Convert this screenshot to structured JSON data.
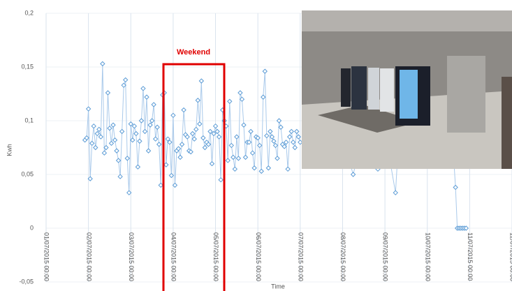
{
  "chart_data": {
    "type": "line",
    "y_label": "Kwh",
    "x_label": "Time",
    "annotation": "Weekend",
    "grid": true,
    "ylim": [
      -0.05,
      0.2
    ],
    "yticks": [
      {
        "value": -0.05,
        "label": "-0,05"
      },
      0,
      {
        "value": 0.05,
        "label": "0,05"
      },
      {
        "value": 0.1,
        "label": "0,1"
      },
      {
        "value": 0.15,
        "label": "0,15"
      },
      {
        "value": 0.2,
        "label": "0,2"
      }
    ],
    "xlim": [
      "2015-07-01T00:00",
      "2015-07-12T00:00"
    ],
    "xticks": [
      {
        "value": "2015-07-01T00:00",
        "label": "01/07/2015 00:00"
      },
      {
        "value": "2015-07-02T00:00",
        "label": "02/07/2015 00:00"
      },
      {
        "value": "2015-07-03T00:00",
        "label": "03/07/2015 00:00"
      },
      {
        "value": "2015-07-04T00:00",
        "label": "04/07/2015 00:00"
      },
      {
        "value": "2015-07-05T00:00",
        "label": "05/07/2015 00:00"
      },
      {
        "value": "2015-07-06T00:00",
        "label": "06/07/2015 00:00"
      },
      {
        "value": "2015-07-07T00:00",
        "label": "07/07/2015 00:00"
      },
      {
        "value": "2015-07-08T00:00",
        "label": "08/07/2015 00:00"
      },
      {
        "value": "2015-07-09T00:00",
        "label": "09/07/2015 00:00"
      },
      {
        "value": "2015-07-10T00:00",
        "label": "10/07/2015 00:00"
      },
      {
        "value": "2015-07-11T00:00",
        "label": "11/07/2015 00:00"
      },
      {
        "value": "2015-07-12T00:00",
        "label": "12/07/2015 00:00"
      }
    ],
    "x": [
      "2015-07-01T22:00",
      "2015-07-01T23:00",
      "2015-07-02T00:00",
      "2015-07-02T01:00",
      "2015-07-02T02:00",
      "2015-07-02T03:00",
      "2015-07-02T04:00",
      "2015-07-02T05:00",
      "2015-07-02T06:00",
      "2015-07-02T07:00",
      "2015-07-02T08:00",
      "2015-07-02T09:00",
      "2015-07-02T10:00",
      "2015-07-02T11:00",
      "2015-07-02T12:00",
      "2015-07-02T13:00",
      "2015-07-02T14:00",
      "2015-07-02T15:00",
      "2015-07-02T16:00",
      "2015-07-02T17:00",
      "2015-07-02T18:00",
      "2015-07-02T19:00",
      "2015-07-02T20:00",
      "2015-07-02T21:00",
      "2015-07-02T22:00",
      "2015-07-02T23:00",
      "2015-07-03T00:00",
      "2015-07-03T01:00",
      "2015-07-03T02:00",
      "2015-07-03T03:00",
      "2015-07-03T04:00",
      "2015-07-03T05:00",
      "2015-07-03T06:00",
      "2015-07-03T07:00",
      "2015-07-03T08:00",
      "2015-07-03T09:00",
      "2015-07-03T10:00",
      "2015-07-03T11:00",
      "2015-07-03T12:00",
      "2015-07-03T13:00",
      "2015-07-03T14:00",
      "2015-07-03T15:00",
      "2015-07-03T16:00",
      "2015-07-03T17:00",
      "2015-07-03T18:00",
      "2015-07-03T19:00",
      "2015-07-03T20:00",
      "2015-07-03T21:00",
      "2015-07-03T22:00",
      "2015-07-03T23:00",
      "2015-07-04T00:00",
      "2015-07-04T01:00",
      "2015-07-04T02:00",
      "2015-07-04T03:00",
      "2015-07-04T04:00",
      "2015-07-04T05:00",
      "2015-07-04T06:00",
      "2015-07-04T07:00",
      "2015-07-04T08:00",
      "2015-07-04T09:00",
      "2015-07-04T10:00",
      "2015-07-04T11:00",
      "2015-07-04T12:00",
      "2015-07-04T13:00",
      "2015-07-04T14:00",
      "2015-07-04T15:00",
      "2015-07-04T16:00",
      "2015-07-04T17:00",
      "2015-07-04T18:00",
      "2015-07-04T19:00",
      "2015-07-04T20:00",
      "2015-07-04T21:00",
      "2015-07-04T22:00",
      "2015-07-04T23:00",
      "2015-07-05T00:00",
      "2015-07-05T01:00",
      "2015-07-05T02:00",
      "2015-07-05T03:00",
      "2015-07-05T04:00",
      "2015-07-05T05:00",
      "2015-07-05T06:00",
      "2015-07-05T07:00",
      "2015-07-05T08:00",
      "2015-07-05T09:00",
      "2015-07-05T10:00",
      "2015-07-05T11:00",
      "2015-07-05T12:00",
      "2015-07-05T13:00",
      "2015-07-05T14:00",
      "2015-07-05T15:00",
      "2015-07-05T16:00",
      "2015-07-05T17:00",
      "2015-07-05T18:00",
      "2015-07-05T19:00",
      "2015-07-05T20:00",
      "2015-07-05T21:00",
      "2015-07-05T22:00",
      "2015-07-05T23:00",
      "2015-07-06T00:00",
      "2015-07-06T01:00",
      "2015-07-06T02:00",
      "2015-07-06T03:00",
      "2015-07-06T04:00",
      "2015-07-06T05:00",
      "2015-07-06T06:00",
      "2015-07-06T07:00",
      "2015-07-06T08:00",
      "2015-07-06T09:00",
      "2015-07-06T10:00",
      "2015-07-06T11:00",
      "2015-07-06T12:00",
      "2015-07-06T13:00",
      "2015-07-06T14:00",
      "2015-07-06T15:00",
      "2015-07-06T16:00",
      "2015-07-06T17:00",
      "2015-07-06T18:00",
      "2015-07-06T19:00",
      "2015-07-06T20:00",
      "2015-07-06T21:00",
      "2015-07-06T22:00",
      "2015-07-06T23:00",
      "2015-07-07T00:00",
      "2015-07-08T00:00",
      "2015-07-08T06:00",
      "2015-07-08T12:00",
      "2015-07-08T20:00",
      "2015-07-09T00:00",
      "2015-07-09T06:00",
      "2015-07-09T08:00",
      "2015-07-10T14:00",
      "2015-07-10T16:00",
      "2015-07-10T17:00",
      "2015-07-10T18:00",
      "2015-07-10T19:00",
      "2015-07-10T20:00",
      "2015-07-10T21:00",
      "2015-07-10T22:00"
    ],
    "series": [
      {
        "name": "Kwh",
        "color": "#5b9bd5",
        "values": [
          0.082,
          0.084,
          0.111,
          0.046,
          0.079,
          0.095,
          0.075,
          0.088,
          0.092,
          0.085,
          0.153,
          0.07,
          0.075,
          0.126,
          0.093,
          0.079,
          0.096,
          0.082,
          0.072,
          0.063,
          0.048,
          0.09,
          0.133,
          0.138,
          0.065,
          0.033,
          0.097,
          0.082,
          0.095,
          0.088,
          0.057,
          0.081,
          0.1,
          0.13,
          0.09,
          0.122,
          0.072,
          0.096,
          0.1,
          0.115,
          0.083,
          0.094,
          0.078,
          0.04,
          0.124,
          0.126,
          0.059,
          0.083,
          0.08,
          0.049,
          0.105,
          0.04,
          0.072,
          0.074,
          0.066,
          0.078,
          0.11,
          0.087,
          0.085,
          0.072,
          0.071,
          0.088,
          0.083,
          0.092,
          0.119,
          0.097,
          0.137,
          0.084,
          0.075,
          0.08,
          0.078,
          0.09,
          0.06,
          0.088,
          0.095,
          0.09,
          0.085,
          0.045,
          0.11,
          0.1,
          0.095,
          0.063,
          0.118,
          0.077,
          0.066,
          0.055,
          0.085,
          0.065,
          0.126,
          0.12,
          0.096,
          0.066,
          0.08,
          0.08,
          0.09,
          0.07,
          0.056,
          0.085,
          0.084,
          0.077,
          0.053,
          0.122,
          0.146,
          0.086,
          0.056,
          0.09,
          0.085,
          0.081,
          0.077,
          0.065,
          0.1,
          0.094,
          0.078,
          0.076,
          0.08,
          0.055,
          0.085,
          0.09,
          0.08,
          0.075,
          0.09,
          0.085,
          0.08,
          0.085,
          0.05,
          0.09,
          0.055,
          0.09,
          0.033,
          0.09,
          0.09,
          0.038,
          0,
          0,
          0,
          0,
          0,
          0
        ]
      }
    ]
  }
}
